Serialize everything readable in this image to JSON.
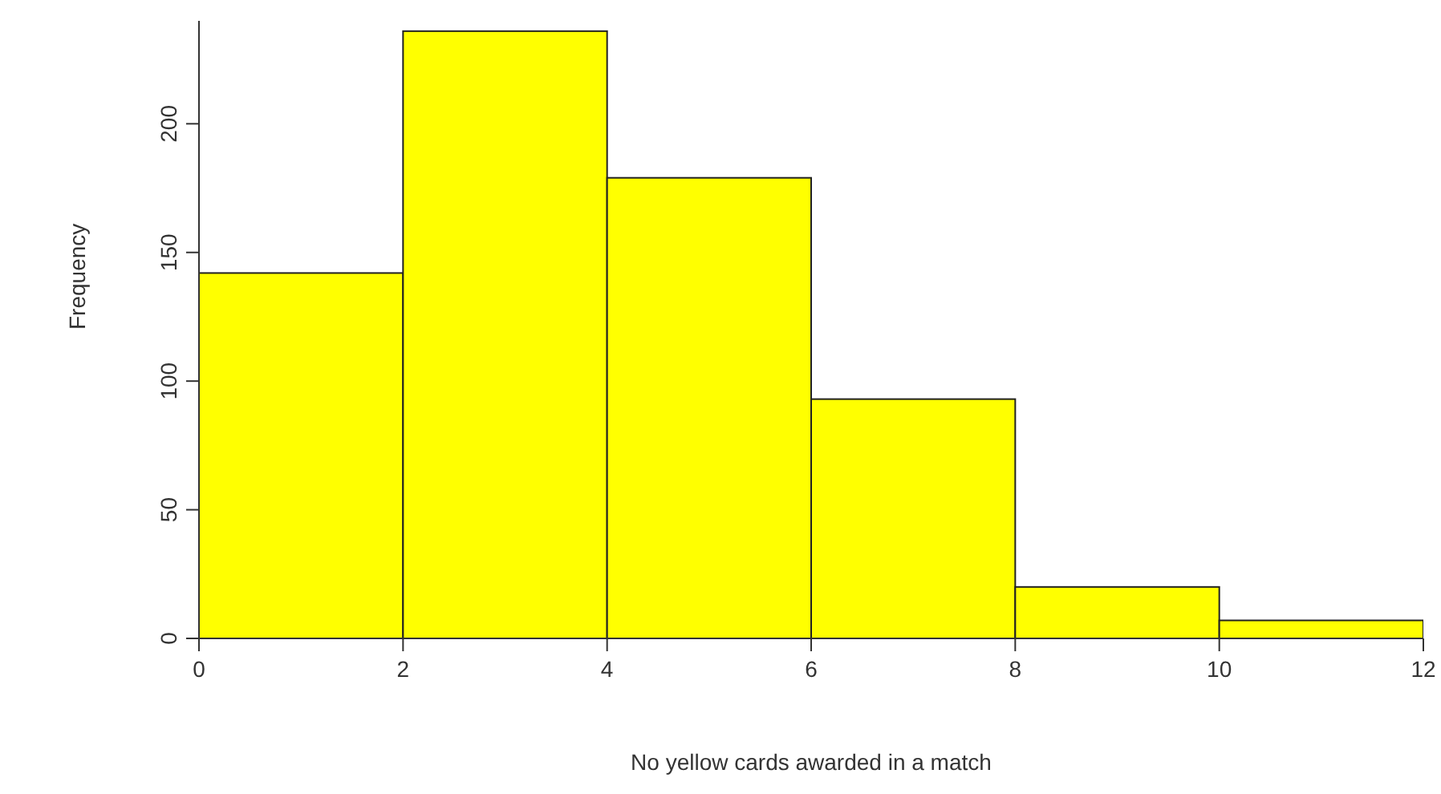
{
  "chart_data": {
    "type": "histogram",
    "xlabel": "No yellow cards awarded in a match",
    "ylabel": "Frequency",
    "bins": [
      0,
      2,
      4,
      6,
      8,
      10,
      12
    ],
    "values": [
      142,
      236,
      179,
      93,
      20,
      7
    ],
    "color": "#ffff00",
    "xlim": [
      0,
      12
    ],
    "xticks": [
      0,
      2,
      4,
      6,
      8,
      10,
      12
    ],
    "ylim": [
      0,
      240
    ],
    "yticks": [
      0,
      50,
      100,
      150,
      200
    ],
    "grid": false,
    "legend": false
  }
}
